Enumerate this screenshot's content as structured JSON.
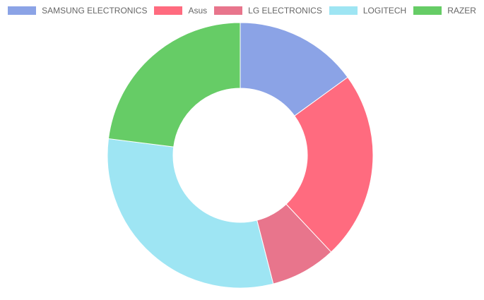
{
  "chart_data": {
    "type": "doughnut",
    "legend_position": "top",
    "series": [
      {
        "name": "SAMSUNG ELECTRONICS",
        "value": 15,
        "color": "#8ba3e6"
      },
      {
        "name": "Asus",
        "value": 23,
        "color": "#ff6b7f"
      },
      {
        "name": "LG ELECTRONICS",
        "value": 8,
        "color": "#e8758c"
      },
      {
        "name": "LOGITECH",
        "value": 31,
        "color": "#9ee5f3"
      },
      {
        "name": "RAZER",
        "value": 23,
        "color": "#66cc66"
      }
    ]
  }
}
